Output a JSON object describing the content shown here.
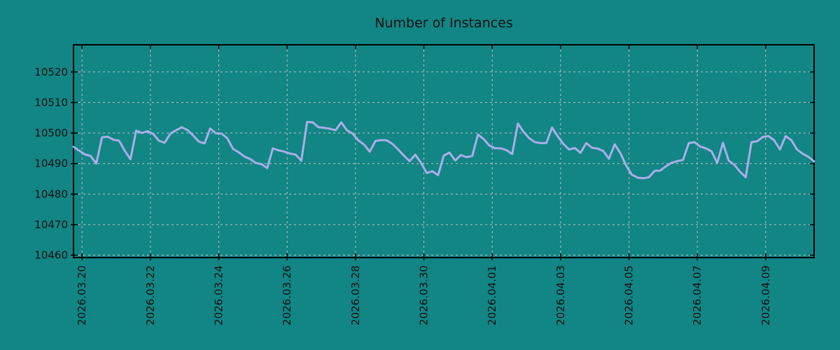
{
  "colors": {
    "background": "#128585",
    "grid": "#c4c4c4",
    "axis": "#000000",
    "text": "#111111",
    "line": "#a9afe8"
  },
  "chart_data": {
    "type": "line",
    "title": "Number of Instances",
    "grid": true,
    "legend": false,
    "x_axis": {
      "tick_labels": [
        "2026.03.20",
        "2026.03.22",
        "2026.03.24",
        "2026.03.26",
        "2026.03.28",
        "2026.03.30",
        "2026.04.01",
        "2026.04.03",
        "2026.04.05",
        "2026.04.07",
        "2026.04.09"
      ],
      "first_tick_at_step": 1.5,
      "steps_per_tick": 12,
      "start_time": "2026-03-19 18:00",
      "step_hours": 4
    },
    "y_axis": {
      "ticks": [
        10460,
        10470,
        10480,
        10490,
        10500,
        10510,
        10520
      ],
      "range": [
        10459.2,
        10528.9
      ]
    },
    "series": [
      {
        "name": "instances",
        "color": "#a9afe8",
        "values": [
          10495.5,
          10494.2,
          10493.0,
          10492.5,
          10490.0,
          10498.6,
          10498.8,
          10497.8,
          10497.5,
          10494.2,
          10491.4,
          10500.8,
          10500.0,
          10500.6,
          10499.7,
          10497.5,
          10496.8,
          10499.8,
          10500.9,
          10501.9,
          10501.0,
          10499.2,
          10497.2,
          10496.6,
          10501.5,
          10499.9,
          10499.8,
          10498.3,
          10494.8,
          10493.7,
          10492.3,
          10491.5,
          10490.2,
          10489.8,
          10488.5,
          10495.0,
          10494.3,
          10493.9,
          10493.3,
          10492.9,
          10490.9,
          10503.6,
          10503.5,
          10501.9,
          10501.7,
          10501.4,
          10500.9,
          10503.5,
          10500.9,
          10499.8,
          10497.6,
          10496.2,
          10493.9,
          10497.4,
          10497.7,
          10497.6,
          10496.4,
          10494.6,
          10492.6,
          10490.8,
          10492.9,
          10490.3,
          10486.9,
          10487.5,
          10486.2,
          10492.6,
          10493.6,
          10491.0,
          10492.8,
          10492.1,
          10492.5,
          10499.5,
          10498.0,
          10495.9,
          10495.0,
          10495.0,
          10494.4,
          10493.1,
          10503.1,
          10500.4,
          10498.3,
          10497.0,
          10496.7,
          10496.7,
          10501.8,
          10498.9,
          10496.4,
          10494.6,
          10495.1,
          10493.5,
          10496.7,
          10495.2,
          10494.9,
          10494.1,
          10491.6,
          10496.3,
          10493.4,
          10489.4,
          10486.4,
          10485.4,
          10485.2,
          10485.5,
          10487.6,
          10487.7,
          10489.1,
          10490.3,
          10490.8,
          10491.2,
          10496.7,
          10497.0,
          10495.6,
          10495.0,
          10494.0,
          10490.2,
          10496.8,
          10491.0,
          10489.6,
          10487.3,
          10485.5,
          10497.0,
          10497.3,
          10498.7,
          10499.0,
          10497.6,
          10494.6,
          10499.0,
          10497.7,
          10494.6,
          10493.2,
          10492.2,
          10490.7
        ]
      }
    ]
  }
}
